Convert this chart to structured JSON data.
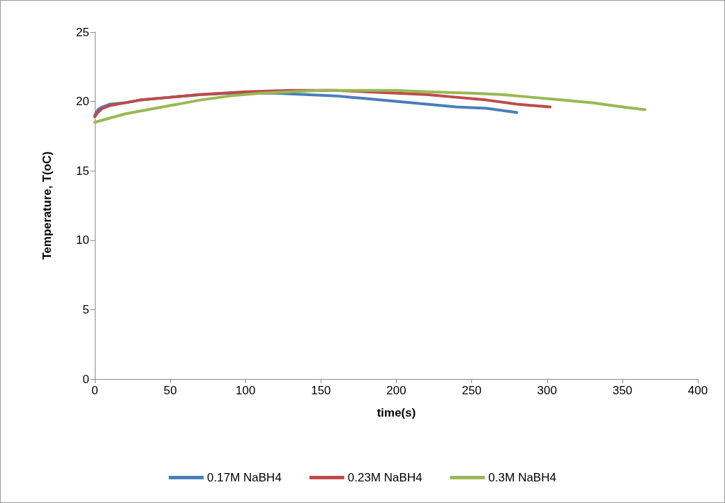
{
  "chart_data": {
    "type": "line",
    "xlabel": "time(s)",
    "ylabel": "Temperature, T(oC)",
    "xlim": [
      0,
      400
    ],
    "xticks": [
      0,
      50,
      100,
      150,
      200,
      250,
      300,
      350,
      400
    ],
    "ylim": [
      0,
      25
    ],
    "yticks": [
      0,
      5,
      10,
      15,
      20,
      25
    ],
    "grid": false,
    "legend": "bottom",
    "marker": "none",
    "series": [
      {
        "name": "0.17M NaBH4",
        "color": "#4a7ebb",
        "x": [
          0,
          2,
          5,
          10,
          20,
          30,
          50,
          70,
          90,
          120,
          140,
          160,
          180,
          200,
          220,
          240,
          260,
          280
        ],
        "values": [
          19.0,
          19.4,
          19.6,
          19.8,
          19.9,
          20.1,
          20.3,
          20.5,
          20.6,
          20.6,
          20.5,
          20.4,
          20.2,
          20.0,
          19.8,
          19.6,
          19.5,
          19.2
        ]
      },
      {
        "name": "0.23M NaBH4",
        "color": "#be4b48",
        "x": [
          0,
          2,
          5,
          10,
          20,
          30,
          50,
          70,
          100,
          130,
          160,
          180,
          200,
          220,
          240,
          260,
          280,
          302
        ],
        "values": [
          18.9,
          19.2,
          19.5,
          19.7,
          19.9,
          20.1,
          20.3,
          20.5,
          20.7,
          20.8,
          20.8,
          20.7,
          20.6,
          20.5,
          20.3,
          20.1,
          19.8,
          19.6
        ]
      },
      {
        "name": "0.3M NaBH4",
        "color": "#98b954",
        "x": [
          0,
          10,
          20,
          30,
          50,
          70,
          90,
          110,
          130,
          150,
          180,
          200,
          220,
          250,
          270,
          290,
          310,
          330,
          350,
          365
        ],
        "values": [
          18.5,
          18.8,
          19.1,
          19.3,
          19.7,
          20.1,
          20.4,
          20.6,
          20.7,
          20.8,
          20.8,
          20.8,
          20.7,
          20.6,
          20.5,
          20.3,
          20.1,
          19.9,
          19.6,
          19.4
        ]
      }
    ]
  }
}
